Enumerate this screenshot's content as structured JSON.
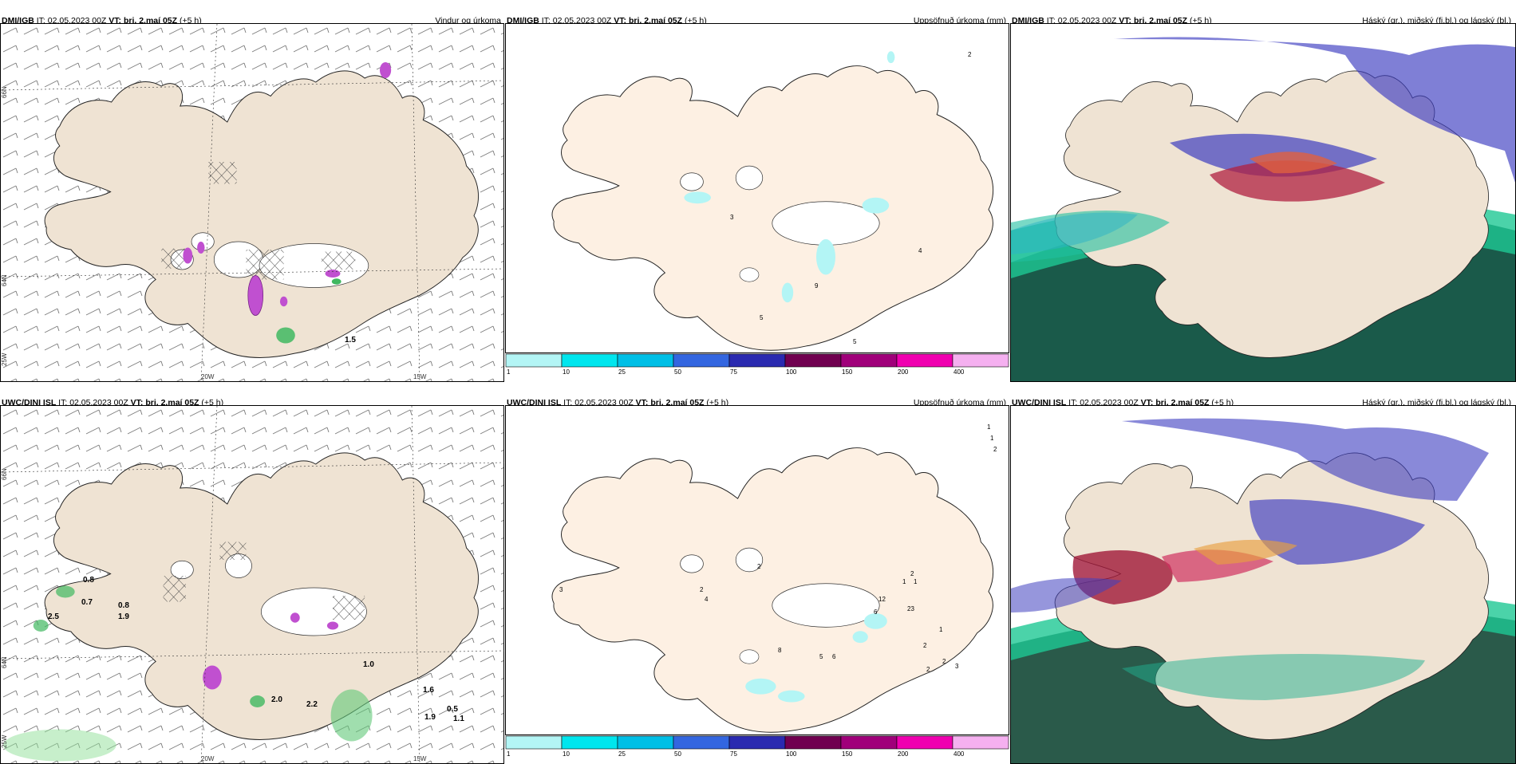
{
  "panels": [
    {
      "id": "p1",
      "model": "DMI/IGB",
      "it_label": "IT:",
      "it": "02.05.2023 00Z",
      "vt_label": "VT:",
      "vt": "þri. 2.maí 05Z",
      "lead": "(+5 h)",
      "product": "Vindur og úrkoma"
    },
    {
      "id": "p2",
      "model": "DMI/IGB",
      "it_label": "IT:",
      "it": "02.05.2023 00Z",
      "vt_label": "VT:",
      "vt": "þri. 2.maí 05Z",
      "lead": "(+5 h)",
      "product": "Uppsöfnuð úrkoma (mm)"
    },
    {
      "id": "p3",
      "model": "DMI/IGB",
      "it_label": "IT:",
      "it": "02.05.2023 00Z",
      "vt_label": "VT:",
      "vt": "þri. 2.maí 05Z",
      "lead": "(+5 h)",
      "product": "Háský (gr.), miðský (fj.bl.) og lágský (bl.)"
    },
    {
      "id": "p4",
      "model": "UWC/DINI ISL",
      "it_label": "IT:",
      "it": "02.05.2023 00Z",
      "vt_label": "VT:",
      "vt": "þri. 2.maí 05Z",
      "lead": "(+5 h)",
      "product": ""
    },
    {
      "id": "p5",
      "model": "UWC/DINI ISL",
      "it_label": "IT:",
      "it": "02.05.2023 00Z",
      "vt_label": "VT:",
      "vt": "þri. 2.maí 05Z",
      "lead": "(+5 h)",
      "product": "Uppsöfnuð úrkoma (mm)"
    },
    {
      "id": "p6",
      "model": "UWC/DINI ISL",
      "it_label": "IT:",
      "it": "02.05.2023 00Z",
      "vt_label": "VT:",
      "vt": "þri. 2.maí 05Z",
      "lead": "(+5 h)",
      "product": "Háský (gr.), miðský (fj.bl.) og lágský (bl.)"
    }
  ],
  "grid_labels": {
    "lat66": "66N",
    "lat64": "64N",
    "lon25": "25W",
    "lon20": "20W",
    "lon15": "15W"
  },
  "colorbar": {
    "colors": [
      "#b3f5f5",
      "#00e6ee",
      "#00bfe6",
      "#3366e0",
      "#2a2ab0",
      "#700050",
      "#a0007a",
      "#f000b0",
      "#f5b0f0"
    ],
    "labels": [
      "1",
      "10",
      "25",
      "50",
      "75",
      "100",
      "150",
      "200",
      "400"
    ]
  },
  "precip_values_top": [
    "2",
    "3",
    "4",
    "9",
    "5",
    "5"
  ],
  "precip_values_bottom": [
    "1",
    "1",
    "2",
    "3",
    "2",
    "4",
    "2",
    "2",
    "1",
    "1",
    "12",
    "6",
    "23",
    "8",
    "5",
    "6",
    "1",
    "2",
    "2",
    "3",
    "2"
  ],
  "wind_values_top": [
    "1.5"
  ],
  "wind_values_bottom": [
    "0.8",
    "0.7",
    "0.8",
    "2.5",
    "1.9",
    "2.0",
    "2.2",
    "1.6",
    "0.5",
    "1.9",
    "1.1",
    "1.0"
  ]
}
